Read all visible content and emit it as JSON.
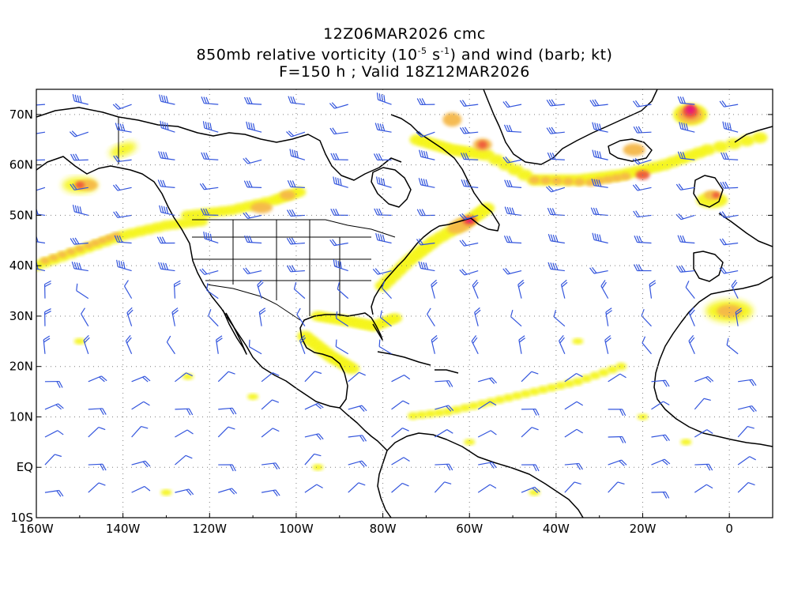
{
  "title": {
    "line1": "12Z06MAR2026 cmc",
    "line2_prefix": "850mb relative vorticity (10",
    "line2_exp1": "-5",
    "line2_mid": " s",
    "line2_exp2": "-1",
    "line2_suffix": ") and wind (barb; kt)",
    "line3": "F=150 h ; Valid 18Z12MAR2026"
  },
  "axes": {
    "lon_labels": [
      "160W",
      "140W",
      "120W",
      "100W",
      "80W",
      "60W",
      "40W",
      "20W",
      "0"
    ],
    "lat_labels": [
      "70N",
      "60N",
      "50N",
      "40N",
      "30N",
      "20N",
      "10N",
      "EQ",
      "10S"
    ],
    "lon_range": [
      -160,
      10
    ],
    "lat_range": [
      -10,
      75
    ],
    "grid": "dotted"
  },
  "colors": {
    "shade_light": "#f5f51a",
    "shade_orange": "#f5b84a",
    "shade_red": "#ee5a3a",
    "shade_magenta": "#e8127a",
    "barb": "#3355dd",
    "coast": "#000000"
  },
  "vorticity_features": [
    {
      "region": "NE Pacific jet band",
      "lon": -140,
      "lat": 44,
      "level": "moderate"
    },
    {
      "region": "Gulf of Alaska",
      "lon": -150,
      "lat": 56,
      "level": "strong"
    },
    {
      "region": "Northern Plains",
      "lon": -108,
      "lat": 52,
      "level": "moderate"
    },
    {
      "region": "Gulf of St. Lawrence",
      "lon": -60,
      "lat": 49,
      "level": "strong"
    },
    {
      "region": "Labrador Sea",
      "lon": -57,
      "lat": 64,
      "level": "strong"
    },
    {
      "region": "Iceland",
      "lon": -22,
      "lat": 63,
      "level": "strong"
    },
    {
      "region": "Norwegian Sea",
      "lon": -9,
      "lat": 70,
      "level": "very strong"
    },
    {
      "region": "British Isles",
      "lon": -4,
      "lat": 53,
      "level": "strong"
    },
    {
      "region": "NW Africa",
      "lon": 0,
      "lat": 31,
      "level": "moderate"
    },
    {
      "region": "Tropical Atlantic band",
      "lon": -45,
      "lat": 15,
      "level": "weak"
    }
  ]
}
